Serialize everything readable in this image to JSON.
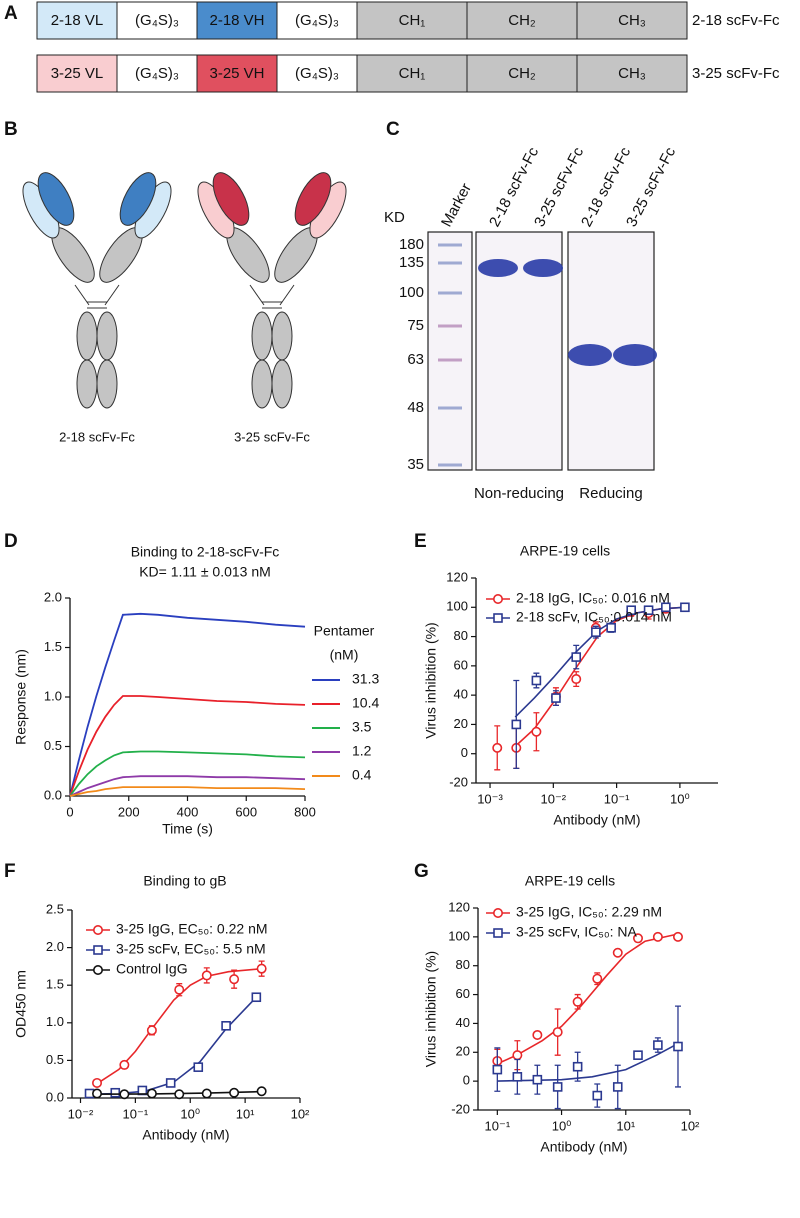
{
  "panel_labels": [
    "A",
    "B",
    "C",
    "D",
    "E",
    "F",
    "G"
  ],
  "constructs": [
    {
      "label": "2-18 scFv-Fc",
      "domains": [
        "2-18 VL",
        "(G₄S)₃",
        "2-18 VH",
        "(G₄S)₃",
        "CH₁",
        "CH₂",
        "CH₃"
      ],
      "colors": [
        "#d3e9f8",
        "#ffffff",
        "#4a8ccc",
        "#ffffff",
        "#c4c4c4",
        "#c4c4c4",
        "#c4c4c4"
      ]
    },
    {
      "label": "3-25 scFv-Fc",
      "domains": [
        "3-25 VL",
        "(G₄S)₃",
        "3-25 VH",
        "(G₄S)₃",
        "CH₁",
        "CH₂",
        "CH₃"
      ],
      "colors": [
        "#f9cdd0",
        "#ffffff",
        "#e0505f",
        "#ffffff",
        "#c4c4c4",
        "#c4c4c4",
        "#c4c4c4"
      ]
    }
  ],
  "antibodies": [
    {
      "label": "2-18 scFv-Fc",
      "light": "#d3e9f8",
      "dark": "#3f7fc2"
    },
    {
      "label": "3-25 scFv-Fc",
      "light": "#f9cdd0",
      "dark": "#c8324a"
    }
  ],
  "gel": {
    "unit": "KD",
    "lanes": [
      "Marker",
      "2-18 scFv-Fc",
      "3-25 scFv-Fc",
      "2-18 scFv-Fc",
      "3-25 scFv-Fc"
    ],
    "markers": [
      180,
      135,
      100,
      75,
      63,
      48,
      35
    ],
    "conditions": [
      "Non-reducing",
      "Reducing"
    ]
  },
  "chart_data": [
    {
      "type": "line",
      "title": "Binding to 2-18-scFv-Fc",
      "subtitle": "KD= 1.11 ± 0.013 nM",
      "x_label": "Time (s)",
      "y_label": "Response (nm)",
      "legend_title": [
        "Pentamer",
        "(nM)"
      ],
      "x": [
        0,
        30,
        60,
        90,
        120,
        150,
        180,
        240,
        300,
        400,
        500,
        600,
        700,
        800
      ],
      "series": [
        {
          "name": "31.3",
          "color": "#2a3fbf",
          "values": [
            0,
            0.36,
            0.7,
            1.01,
            1.3,
            1.57,
            1.83,
            1.84,
            1.83,
            1.8,
            1.78,
            1.76,
            1.73,
            1.71
          ]
        },
        {
          "name": "10.4",
          "color": "#e8202a",
          "values": [
            0,
            0.25,
            0.47,
            0.65,
            0.8,
            0.92,
            1.01,
            1.01,
            1.0,
            0.98,
            0.96,
            0.95,
            0.93,
            0.92
          ]
        },
        {
          "name": "3.5",
          "color": "#22b04a",
          "values": [
            0,
            0.12,
            0.22,
            0.3,
            0.36,
            0.41,
            0.44,
            0.45,
            0.45,
            0.44,
            0.43,
            0.42,
            0.4,
            0.39
          ]
        },
        {
          "name": "1.2",
          "color": "#8e3aa8",
          "values": [
            0,
            0.04,
            0.08,
            0.11,
            0.14,
            0.17,
            0.19,
            0.2,
            0.2,
            0.2,
            0.19,
            0.19,
            0.18,
            0.17
          ]
        },
        {
          "name": "0.4",
          "color": "#f28a1a",
          "values": [
            0,
            0.02,
            0.04,
            0.05,
            0.07,
            0.08,
            0.09,
            0.09,
            0.09,
            0.09,
            0.08,
            0.08,
            0.08,
            0.07
          ]
        }
      ],
      "xlim": [
        0,
        800
      ],
      "xticks": [
        0,
        200,
        400,
        600,
        800
      ],
      "ylim": [
        0,
        2
      ],
      "yticks": [
        {
          "value": 0,
          "label": "0.0"
        },
        0.5,
        {
          "value": 1,
          "label": "1.0"
        },
        1.5,
        {
          "value": 2,
          "label": "2.0"
        }
      ]
    },
    {
      "type": "scatter",
      "xscale": "log",
      "title": "ARPE-19 cells",
      "x_label": "Antibody (nM)",
      "y_label": "Virus inhibition (%)",
      "series": [
        {
          "name": "2-18 IgG, IC₅₀: 0.016 nM",
          "color": "#e8272a",
          "marker": "circle",
          "x": [
            0.0013,
            0.0026,
            0.0054,
            0.011,
            0.023,
            0.047,
            0.17,
            0.32,
            0.6
          ],
          "values": [
            4,
            4,
            15,
            39,
            51,
            86,
            97,
            96,
            99
          ],
          "errors": [
            15,
            14,
            13,
            6,
            5,
            4,
            3,
            4,
            2
          ],
          "fit": {
            "x": [
              0.0025,
              0.005,
              0.01,
              0.02,
              0.05,
              0.1,
              0.2,
              0.5,
              1.2
            ],
            "values": [
              5,
              17,
              35,
              55,
              80,
              91,
              96,
              99,
              100
            ]
          }
        },
        {
          "name": "2-18 scFv, IC₅₀:0.014 nM",
          "color": "#2b3990",
          "marker": "square",
          "x": [
            0.0026,
            0.0054,
            0.011,
            0.023,
            0.047,
            0.082,
            0.17,
            0.32,
            0.6,
            1.2
          ],
          "values": [
            20,
            50,
            38,
            66,
            83,
            86,
            98,
            98,
            100,
            100
          ],
          "errors": [
            30,
            5,
            5,
            8,
            4,
            3,
            2,
            2,
            2,
            1
          ],
          "fit": {
            "x": [
              0.0025,
              0.005,
              0.01,
              0.02,
              0.05,
              0.1,
              0.2,
              0.5,
              1.2
            ],
            "values": [
              25,
              38,
              52,
              67,
              84,
              92,
              96,
              99,
              100
            ]
          }
        }
      ],
      "xlim": [
        0.0006,
        4
      ],
      "xticks": [
        {
          "value": 0.001,
          "label": "10⁻³"
        },
        {
          "value": 0.01,
          "label": "10⁻²"
        },
        {
          "value": 0.1,
          "label": "10⁻¹"
        },
        {
          "value": 1,
          "label": "10⁰"
        }
      ],
      "ylim": [
        -20,
        120
      ],
      "yticks": [
        -20,
        0,
        20,
        40,
        60,
        80,
        100,
        120
      ]
    },
    {
      "type": "scatter",
      "xscale": "log",
      "title": "Binding to gB",
      "x_label": "Antibody (nM)",
      "y_label": "OD450 nm",
      "series": [
        {
          "name": "3-25 IgG, EC₅₀: 0.22 nM",
          "color": "#e8272a",
          "marker": "circle",
          "x": [
            0.02,
            0.063,
            0.2,
            0.63,
            2,
            6.3,
            20
          ],
          "values": [
            0.2,
            0.44,
            0.9,
            1.44,
            1.63,
            1.58,
            1.72
          ],
          "errors": [
            0.02,
            0.02,
            0.06,
            0.08,
            0.1,
            0.12,
            0.1
          ],
          "fit": {
            "x": [
              0.02,
              0.05,
              0.1,
              0.2,
              0.5,
              1,
              2,
              5,
              20
            ],
            "values": [
              0.19,
              0.38,
              0.62,
              0.92,
              1.3,
              1.5,
              1.62,
              1.68,
              1.72
            ]
          }
        },
        {
          "name": "3-25 scFv, EC₅₀: 5.5 nM",
          "color": "#2b3990",
          "marker": "square",
          "x": [
            0.0146,
            0.043,
            0.134,
            0.44,
            1.4,
            4.5,
            16
          ],
          "values": [
            0.06,
            0.07,
            0.1,
            0.2,
            0.41,
            0.96,
            1.34
          ],
          "errors": [
            0.01,
            0.01,
            0.01,
            0.02,
            0.04,
            0.02,
            0.02
          ],
          "fit": {
            "x": [
              0.015,
              0.05,
              0.15,
              0.5,
              1.5,
              4.5,
              16
            ],
            "values": [
              0.05,
              0.06,
              0.09,
              0.21,
              0.48,
              0.92,
              1.34
            ]
          }
        },
        {
          "name": "Control IgG",
          "color": "#111111",
          "marker": "circle",
          "x": [
            0.02,
            0.063,
            0.2,
            0.63,
            2,
            6.3,
            20
          ],
          "values": [
            0.06,
            0.05,
            0.06,
            0.05,
            0.06,
            0.07,
            0.09
          ],
          "errors": [
            0.01,
            0.01,
            0.01,
            0.01,
            0.01,
            0.01,
            0.01
          ],
          "fit": {
            "x": [
              0.02,
              0.2,
              2,
              20
            ],
            "values": [
              0.05,
              0.055,
              0.065,
              0.085
            ]
          }
        }
      ],
      "xlim": [
        0.007,
        100
      ],
      "xticks": [
        {
          "value": 0.01,
          "label": "10⁻²"
        },
        {
          "value": 0.1,
          "label": "10⁻¹"
        },
        {
          "value": 1,
          "label": "10⁰"
        },
        {
          "value": 10,
          "label": "10¹"
        },
        {
          "value": 100,
          "label": "10²"
        }
      ],
      "ylim": [
        0,
        2.5
      ],
      "yticks": [
        {
          "value": 0,
          "label": "0.0"
        },
        0.5,
        {
          "value": 1,
          "label": "1.0"
        },
        1.5,
        {
          "value": 2,
          "label": "2.0"
        },
        2.5
      ]
    },
    {
      "type": "scatter",
      "xscale": "log",
      "title": "ARPE-19 cells",
      "x_label": "Antibody (nM)",
      "y_label": "Virus inhibition (%)",
      "series": [
        {
          "name": "3-25 IgG, IC₅₀: 2.29 nM",
          "color": "#e8272a",
          "marker": "circle",
          "x": [
            0.1,
            0.205,
            0.42,
            0.87,
            1.78,
            3.6,
            7.5,
            15.5,
            31.6,
            65
          ],
          "values": [
            14,
            18,
            32,
            34,
            55,
            71,
            89,
            99,
            100,
            100
          ],
          "errors": [
            8,
            10,
            2,
            16,
            5,
            4,
            2,
            1,
            1,
            1
          ],
          "fit": {
            "x": [
              0.1,
              0.2,
              0.5,
              1,
              2,
              5,
              10,
              20,
              65
            ],
            "values": [
              12,
              18,
              28,
              38,
              52,
              73,
              88,
              97,
              102
            ]
          }
        },
        {
          "name": "3-25 scFv, IC₅₀:  NA",
          "color": "#2b3990",
          "marker": "square",
          "x": [
            0.1,
            0.205,
            0.42,
            0.87,
            1.78,
            3.6,
            7.5,
            15.5,
            31.6,
            65
          ],
          "values": [
            8,
            3,
            1,
            -4,
            10,
            -10,
            -4,
            18,
            25,
            24
          ],
          "errors": [
            15,
            12,
            10,
            15,
            10,
            8,
            15,
            2,
            5,
            28
          ],
          "fit": {
            "x": [
              0.1,
              0.3,
              1,
              3,
              10,
              30,
              65
            ],
            "values": [
              0,
              0.5,
              1,
              3,
              8,
              18,
              26
            ]
          }
        }
      ],
      "xlim": [
        0.05,
        100
      ],
      "xticks": [
        {
          "value": 0.1,
          "label": "10⁻¹"
        },
        {
          "value": 1,
          "label": "10⁰"
        },
        {
          "value": 10,
          "label": "10¹"
        },
        {
          "value": 100,
          "label": "10²"
        }
      ],
      "ylim": [
        -20,
        120
      ],
      "yticks": [
        -20,
        0,
        20,
        40,
        60,
        80,
        100,
        120
      ]
    }
  ]
}
